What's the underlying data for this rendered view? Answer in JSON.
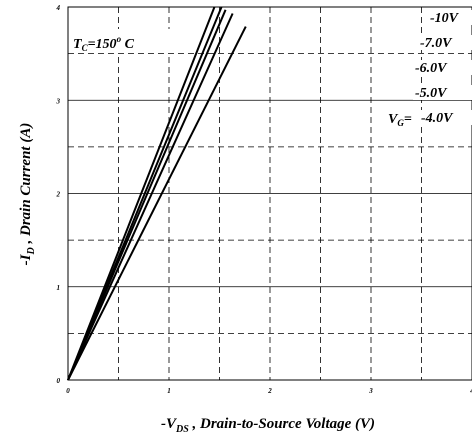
{
  "chart_data": {
    "type": "line",
    "xlabel_main": "-V",
    "xlabel_sub": "DS",
    "xlabel_rest": " , Drain-to-Source Voltage (V)",
    "ylabel_main": "-I",
    "ylabel_sub": "D",
    "ylabel_rest": " , Drain Current (A)",
    "xlim": [
      0,
      4
    ],
    "ylim": [
      0,
      4
    ],
    "x_ticks": [
      "0",
      "1",
      "2",
      "3",
      "4"
    ],
    "y_ticks": [
      "0",
      "1",
      "2",
      "3",
      "4"
    ],
    "grid": true,
    "annotation_condition": {
      "main": "T",
      "sub": "C",
      "value": "=150",
      "degree": "o",
      "unit": "C"
    },
    "vg_label": {
      "main": "V",
      "sub": "G",
      "eq": "="
    },
    "series": [
      {
        "name": "-10V",
        "x": [
          0,
          1.45
        ],
        "y": [
          0,
          4.0
        ]
      },
      {
        "name": "-7.0V",
        "x": [
          0,
          1.52
        ],
        "y": [
          0,
          4.0
        ]
      },
      {
        "name": "-6.0V",
        "x": [
          0,
          1.56
        ],
        "y": [
          0,
          3.97
        ]
      },
      {
        "name": "-5.0V",
        "x": [
          0,
          1.63
        ],
        "y": [
          0,
          3.93
        ]
      },
      {
        "name": "-4.0V",
        "x": [
          0,
          1.76
        ],
        "y": [
          0,
          3.79
        ]
      }
    ]
  }
}
